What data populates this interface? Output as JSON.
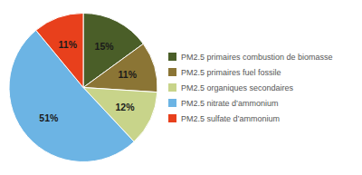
{
  "chart_data": {
    "type": "pie",
    "categories": [
      "PM2.5 primaires combustion de biomasse",
      "PM2.5 primaires fuel fossile",
      "PM2.5 organiques secondaires",
      "PM2.5 nitrate d’ammonium",
      "PM2.5 sulfate d’ammonium"
    ],
    "values": [
      15,
      11,
      12,
      51,
      11
    ],
    "value_labels": [
      "15%",
      "11%",
      "12%",
      "51%",
      "11%"
    ],
    "colors": [
      "#4a5e28",
      "#8b7535",
      "#c8d48a",
      "#6cb4e4",
      "#e8401c"
    ],
    "data_labels": true,
    "legend": "right"
  }
}
